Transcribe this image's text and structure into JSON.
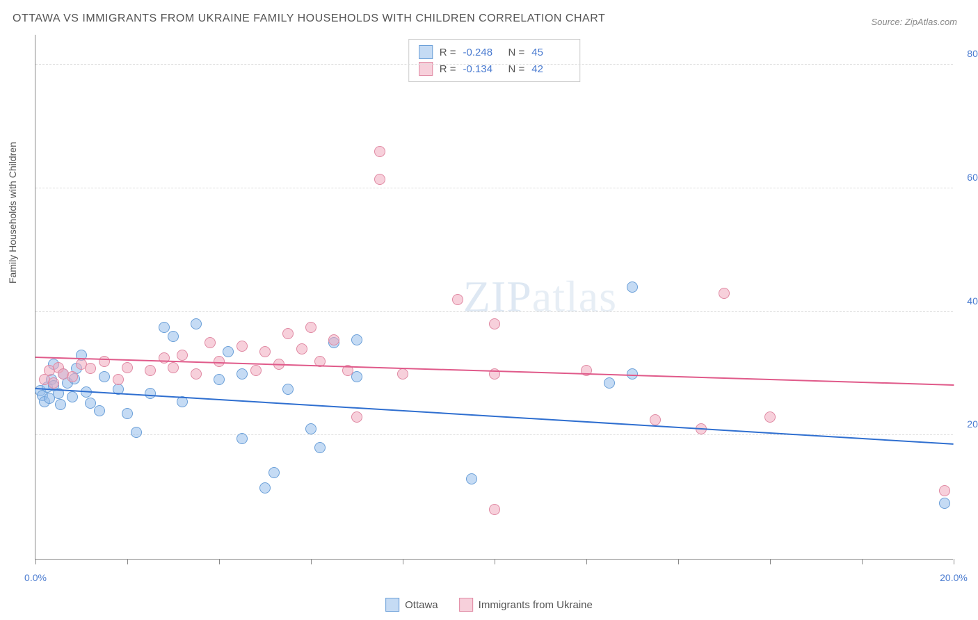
{
  "title": "OTTAWA VS IMMIGRANTS FROM UKRAINE FAMILY HOUSEHOLDS WITH CHILDREN CORRELATION CHART",
  "source": "Source: ZipAtlas.com",
  "ylabel": "Family Households with Children",
  "watermark_a": "ZIP",
  "watermark_b": "atlas",
  "chart": {
    "type": "scatter",
    "xlim": [
      0,
      20
    ],
    "ylim": [
      0,
      85
    ],
    "xtick_positions": [
      0,
      2,
      4,
      6,
      8,
      10,
      12,
      14,
      16,
      18,
      20
    ],
    "xtick_labels": {
      "0": "0.0%",
      "20": "20.0%"
    },
    "ytick_positions": [
      20,
      40,
      60,
      80
    ],
    "ytick_labels": [
      "20.0%",
      "40.0%",
      "60.0%",
      "80.0%"
    ],
    "grid_color": "#dddddd",
    "axis_color": "#888888",
    "label_color": "#4a7bd0",
    "background_color": "#ffffff",
    "point_radius": 8,
    "series": [
      {
        "name": "Ottawa",
        "color_fill": "rgba(150, 190, 235, 0.55)",
        "color_stroke": "#6a9fd8",
        "r_label": "R =",
        "r_value": "-0.248",
        "n_label": "N =",
        "n_value": "45",
        "trend": {
          "y_at_xmin": 27.5,
          "y_at_xmax": 18.5,
          "color": "#2f6fd0",
          "width": 2
        },
        "points": [
          [
            0.1,
            27.2
          ],
          [
            0.15,
            26.5
          ],
          [
            0.2,
            25.5
          ],
          [
            0.25,
            27.8
          ],
          [
            0.3,
            26.0
          ],
          [
            0.35,
            29.0
          ],
          [
            0.4,
            31.5
          ],
          [
            0.4,
            28.0
          ],
          [
            0.5,
            26.8
          ],
          [
            0.55,
            25.0
          ],
          [
            0.6,
            30.0
          ],
          [
            0.7,
            28.5
          ],
          [
            0.8,
            26.2
          ],
          [
            0.85,
            29.2
          ],
          [
            0.9,
            30.8
          ],
          [
            1.0,
            33.0
          ],
          [
            1.1,
            27.0
          ],
          [
            1.2,
            25.2
          ],
          [
            1.4,
            24.0
          ],
          [
            1.5,
            29.5
          ],
          [
            1.8,
            27.5
          ],
          [
            2.0,
            23.5
          ],
          [
            2.2,
            20.5
          ],
          [
            2.5,
            26.8
          ],
          [
            2.8,
            37.5
          ],
          [
            3.0,
            36.0
          ],
          [
            3.2,
            25.5
          ],
          [
            3.5,
            38.0
          ],
          [
            4.0,
            29.0
          ],
          [
            4.2,
            33.5
          ],
          [
            4.5,
            19.5
          ],
          [
            5.0,
            11.5
          ],
          [
            5.2,
            14.0
          ],
          [
            5.5,
            27.5
          ],
          [
            6.0,
            21.0
          ],
          [
            6.2,
            18.0
          ],
          [
            6.5,
            35.0
          ],
          [
            7.0,
            29.5
          ],
          [
            7.0,
            35.5
          ],
          [
            9.5,
            13.0
          ],
          [
            12.5,
            28.5
          ],
          [
            13.0,
            44.0
          ],
          [
            13.0,
            30.0
          ],
          [
            19.8,
            9.0
          ],
          [
            4.5,
            30.0
          ]
        ]
      },
      {
        "name": "Immigrants from Ukraine",
        "color_fill": "rgba(240, 170, 190, 0.55)",
        "color_stroke": "#e089a3",
        "r_label": "R =",
        "r_value": "-0.134",
        "n_label": "N =",
        "n_value": "42",
        "trend": {
          "y_at_xmin": 32.5,
          "y_at_xmax": 28.0,
          "color": "#e05a8a",
          "width": 2
        },
        "points": [
          [
            0.2,
            29.0
          ],
          [
            0.3,
            30.5
          ],
          [
            0.4,
            28.5
          ],
          [
            0.5,
            31.0
          ],
          [
            0.6,
            30.0
          ],
          [
            0.8,
            29.5
          ],
          [
            1.0,
            31.5
          ],
          [
            1.2,
            30.8
          ],
          [
            1.5,
            32.0
          ],
          [
            1.8,
            29.0
          ],
          [
            2.0,
            31.0
          ],
          [
            2.5,
            30.5
          ],
          [
            2.8,
            32.5
          ],
          [
            3.0,
            31.0
          ],
          [
            3.2,
            33.0
          ],
          [
            3.5,
            30.0
          ],
          [
            3.8,
            35.0
          ],
          [
            4.0,
            32.0
          ],
          [
            4.5,
            34.5
          ],
          [
            4.8,
            30.5
          ],
          [
            5.0,
            33.5
          ],
          [
            5.3,
            31.5
          ],
          [
            5.5,
            36.5
          ],
          [
            5.8,
            34.0
          ],
          [
            6.0,
            37.5
          ],
          [
            6.2,
            32.0
          ],
          [
            6.5,
            35.5
          ],
          [
            6.8,
            30.5
          ],
          [
            7.0,
            23.0
          ],
          [
            7.5,
            61.5
          ],
          [
            7.5,
            66.0
          ],
          [
            8.0,
            30.0
          ],
          [
            9.2,
            42.0
          ],
          [
            10.0,
            38.0
          ],
          [
            10.0,
            30.0
          ],
          [
            10.0,
            8.0
          ],
          [
            12.0,
            30.5
          ],
          [
            13.5,
            22.5
          ],
          [
            15.0,
            43.0
          ],
          [
            14.5,
            21.0
          ],
          [
            16.0,
            23.0
          ],
          [
            19.8,
            11.0
          ]
        ]
      }
    ]
  }
}
